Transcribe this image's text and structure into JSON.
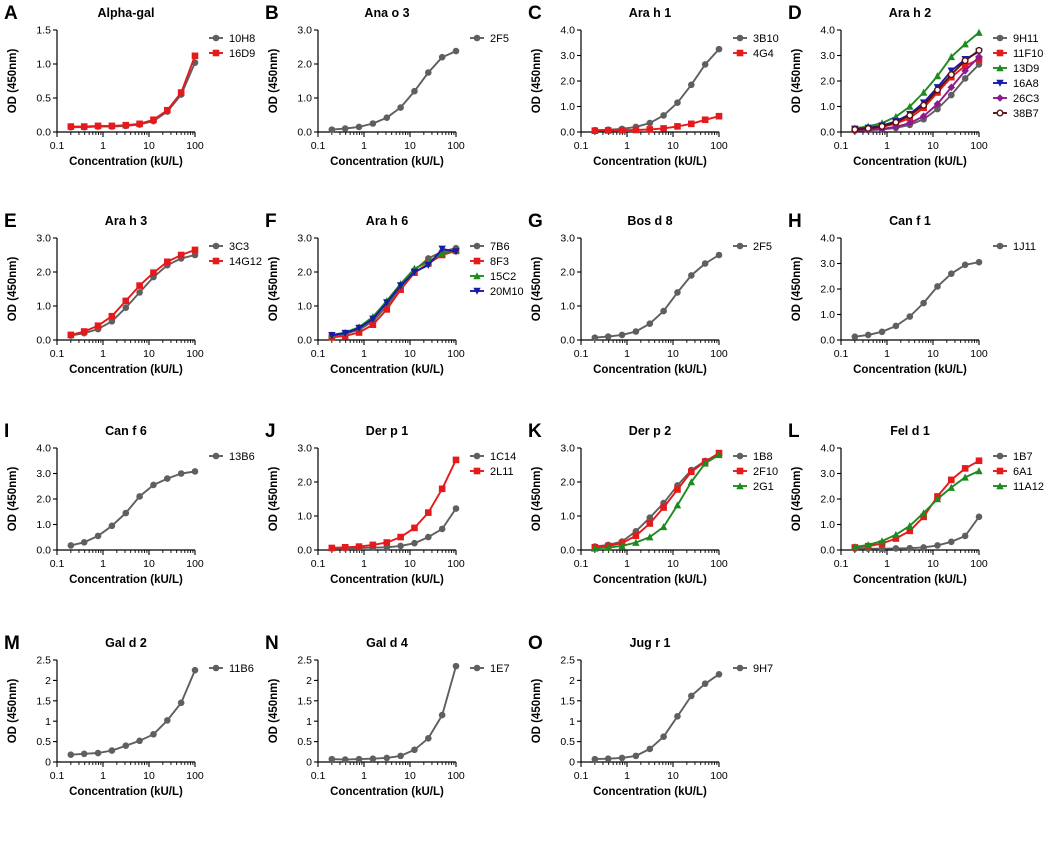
{
  "colors": {
    "gray": "#5f5f5f",
    "red": "#e41a1c",
    "green": "#1f8a1f",
    "blue": "#1a1aa8",
    "purple": "#8e1a8e",
    "maroon": "#5a1010"
  },
  "chart_data": [
    {
      "panel": "A",
      "type": "line",
      "title": "Alpha-gal",
      "xlabel": "Concentration (kU/L)",
      "ylabel": "OD (450nm)",
      "xscale": "log",
      "xlim": [
        0.1,
        100
      ],
      "xticks": [
        "0.1",
        "1",
        "10",
        "100"
      ],
      "ylim": [
        0,
        1.5
      ],
      "yticks": [
        "0.0",
        "0.5",
        "1.0",
        "1.5"
      ],
      "x": [
        0.2,
        0.39,
        0.78,
        1.56,
        3.13,
        6.25,
        12.5,
        25,
        50,
        100
      ],
      "series": [
        {
          "name": "10H8",
          "color": "gray",
          "marker": "circle",
          "values": [
            0.07,
            0.07,
            0.08,
            0.08,
            0.09,
            0.11,
            0.16,
            0.3,
            0.55,
            1.02
          ]
        },
        {
          "name": "16D9",
          "color": "red",
          "marker": "square",
          "values": [
            0.08,
            0.08,
            0.09,
            0.09,
            0.1,
            0.12,
            0.18,
            0.32,
            0.58,
            1.12
          ]
        }
      ]
    },
    {
      "panel": "B",
      "type": "line",
      "title": "Ana o 3",
      "xlabel": "Concentration (kU/L)",
      "ylabel": "OD (450nm)",
      "xscale": "log",
      "xlim": [
        0.1,
        100
      ],
      "xticks": [
        "0.1",
        "1",
        "10",
        "100"
      ],
      "ylim": [
        0,
        3.0
      ],
      "yticks": [
        "0.0",
        "1.0",
        "2.0",
        "3.0"
      ],
      "x": [
        0.2,
        0.39,
        0.78,
        1.56,
        3.13,
        6.25,
        12.5,
        25,
        50,
        100
      ],
      "series": [
        {
          "name": "2F5",
          "color": "gray",
          "marker": "circle",
          "values": [
            0.07,
            0.1,
            0.15,
            0.25,
            0.42,
            0.72,
            1.2,
            1.75,
            2.2,
            2.38
          ]
        }
      ]
    },
    {
      "panel": "C",
      "type": "line",
      "title": "Ara h 1",
      "xlabel": "Concentration (kU/L)",
      "ylabel": "OD (450nm)",
      "xscale": "log",
      "xlim": [
        0.1,
        100
      ],
      "xticks": [
        "0.1",
        "1",
        "10",
        "100"
      ],
      "ylim": [
        0,
        4.0
      ],
      "yticks": [
        "0.0",
        "1.0",
        "2.0",
        "3.0",
        "4.0"
      ],
      "x": [
        0.2,
        0.39,
        0.78,
        1.56,
        3.13,
        6.25,
        12.5,
        25,
        50,
        100
      ],
      "series": [
        {
          "name": "3B10",
          "color": "gray",
          "marker": "circle",
          "values": [
            0.07,
            0.09,
            0.12,
            0.2,
            0.35,
            0.65,
            1.15,
            1.85,
            2.65,
            3.25
          ]
        },
        {
          "name": "4G4",
          "color": "red",
          "marker": "square",
          "values": [
            0.05,
            0.06,
            0.07,
            0.08,
            0.1,
            0.14,
            0.22,
            0.32,
            0.48,
            0.62
          ]
        }
      ]
    },
    {
      "panel": "D",
      "type": "line",
      "title": "Ara h 2",
      "xlabel": "Concentration (kU/L)",
      "ylabel": "OD (450nm)",
      "xscale": "log",
      "xlim": [
        0.1,
        100
      ],
      "xticks": [
        "0.1",
        "1",
        "10",
        "100"
      ],
      "ylim": [
        0,
        4.0
      ],
      "yticks": [
        "0.0",
        "1.0",
        "2.0",
        "3.0",
        "4.0"
      ],
      "x": [
        0.2,
        0.39,
        0.78,
        1.56,
        3.13,
        6.25,
        12.5,
        25,
        50,
        100
      ],
      "series": [
        {
          "name": "9H11",
          "color": "gray",
          "marker": "circle",
          "values": [
            0.05,
            0.07,
            0.1,
            0.16,
            0.28,
            0.5,
            0.9,
            1.45,
            2.1,
            2.65
          ]
        },
        {
          "name": "11F10",
          "color": "red",
          "marker": "square",
          "values": [
            0.1,
            0.13,
            0.2,
            0.33,
            0.55,
            0.95,
            1.55,
            2.15,
            2.6,
            2.85
          ]
        },
        {
          "name": "13D9",
          "color": "green",
          "marker": "triangle",
          "values": [
            0.15,
            0.22,
            0.35,
            0.6,
            1.0,
            1.55,
            2.2,
            2.95,
            3.45,
            3.9
          ]
        },
        {
          "name": "16A8",
          "color": "blue",
          "marker": "triangle-down",
          "values": [
            0.12,
            0.16,
            0.25,
            0.42,
            0.7,
            1.15,
            1.75,
            2.4,
            2.85,
            3.15
          ]
        },
        {
          "name": "26C3",
          "color": "purple",
          "marker": "diamond",
          "values": [
            0.06,
            0.08,
            0.12,
            0.2,
            0.35,
            0.62,
            1.1,
            1.75,
            2.4,
            2.95
          ]
        },
        {
          "name": "38B7",
          "color": "maroon",
          "marker": "circle-open",
          "values": [
            0.1,
            0.14,
            0.22,
            0.38,
            0.65,
            1.05,
            1.65,
            2.25,
            2.8,
            3.2
          ]
        }
      ]
    },
    {
      "panel": "E",
      "type": "line",
      "title": "Ara h 3",
      "xlabel": "Concentration (kU/L)",
      "ylabel": "OD (450nm)",
      "xscale": "log",
      "xlim": [
        0.1,
        100
      ],
      "xticks": [
        "0.1",
        "1",
        "10",
        "100"
      ],
      "ylim": [
        0,
        3.0
      ],
      "yticks": [
        "0.0",
        "1.0",
        "2.0",
        "3.0"
      ],
      "x": [
        0.2,
        0.39,
        0.78,
        1.56,
        3.13,
        6.25,
        12.5,
        25,
        50,
        100
      ],
      "series": [
        {
          "name": "3C3",
          "color": "gray",
          "marker": "circle",
          "values": [
            0.13,
            0.2,
            0.32,
            0.55,
            0.95,
            1.4,
            1.85,
            2.2,
            2.4,
            2.5
          ]
        },
        {
          "name": "14G12",
          "color": "red",
          "marker": "square",
          "values": [
            0.15,
            0.25,
            0.42,
            0.7,
            1.15,
            1.6,
            1.98,
            2.3,
            2.5,
            2.65
          ]
        }
      ]
    },
    {
      "panel": "F",
      "type": "line",
      "title": "Ara h 6",
      "xlabel": "Concentration (kU/L)",
      "ylabel": "OD (450nm)",
      "xscale": "log",
      "xlim": [
        0.1,
        100
      ],
      "xticks": [
        "0.1",
        "1",
        "10",
        "100"
      ],
      "ylim": [
        0,
        3.0
      ],
      "yticks": [
        "0.0",
        "1.0",
        "2.0",
        "3.0"
      ],
      "x": [
        0.2,
        0.39,
        0.78,
        1.56,
        3.13,
        6.25,
        12.5,
        25,
        50,
        100
      ],
      "series": [
        {
          "name": "7B6",
          "color": "gray",
          "marker": "circle",
          "values": [
            0.12,
            0.18,
            0.3,
            0.55,
            1.0,
            1.55,
            2.05,
            2.4,
            2.6,
            2.7
          ]
        },
        {
          "name": "8F3",
          "color": "red",
          "marker": "square",
          "values": [
            0.08,
            0.12,
            0.22,
            0.45,
            0.9,
            1.48,
            1.98,
            2.25,
            2.5,
            2.62
          ]
        },
        {
          "name": "15C2",
          "color": "green",
          "marker": "triangle",
          "values": [
            0.15,
            0.22,
            0.38,
            0.68,
            1.15,
            1.65,
            2.1,
            2.3,
            2.55,
            2.65
          ]
        },
        {
          "name": "20M10",
          "color": "blue",
          "marker": "triangle-down",
          "values": [
            0.14,
            0.2,
            0.35,
            0.62,
            1.1,
            1.6,
            2.0,
            2.2,
            2.68,
            2.6
          ]
        }
      ]
    },
    {
      "panel": "G",
      "type": "line",
      "title": "Bos d 8",
      "xlabel": "Concentration (kU/L)",
      "ylabel": "OD (450nm)",
      "xscale": "log",
      "xlim": [
        0.1,
        100
      ],
      "xticks": [
        "0.1",
        "1",
        "10",
        "100"
      ],
      "ylim": [
        0,
        3.0
      ],
      "yticks": [
        "0.0",
        "1.0",
        "2.0",
        "3.0"
      ],
      "x": [
        0.2,
        0.39,
        0.78,
        1.56,
        3.13,
        6.25,
        12.5,
        25,
        50,
        100
      ],
      "series": [
        {
          "name": "2F5",
          "color": "gray",
          "marker": "circle",
          "values": [
            0.07,
            0.1,
            0.15,
            0.25,
            0.48,
            0.85,
            1.4,
            1.9,
            2.25,
            2.5
          ]
        }
      ]
    },
    {
      "panel": "H",
      "type": "line",
      "title": "Can f 1",
      "xlabel": "Concentration (kU/L)",
      "ylabel": "OD (450nm)",
      "xscale": "log",
      "xlim": [
        0.1,
        100
      ],
      "xticks": [
        "0.1",
        "1",
        "10",
        "100"
      ],
      "ylim": [
        0,
        4.0
      ],
      "yticks": [
        "0.0",
        "1.0",
        "2.0",
        "3.0",
        "4.0"
      ],
      "x": [
        0.2,
        0.39,
        0.78,
        1.56,
        3.13,
        6.25,
        12.5,
        25,
        50,
        100
      ],
      "series": [
        {
          "name": "1J11",
          "color": "gray",
          "marker": "circle",
          "values": [
            0.13,
            0.2,
            0.32,
            0.55,
            0.92,
            1.45,
            2.1,
            2.6,
            2.95,
            3.05
          ]
        }
      ]
    },
    {
      "panel": "I",
      "type": "line",
      "title": "Can f 6",
      "xlabel": "Concentration (kU/L)",
      "ylabel": "OD (450nm)",
      "xscale": "log",
      "xlim": [
        0.1,
        100
      ],
      "xticks": [
        "0.1",
        "1",
        "10",
        "100"
      ],
      "ylim": [
        0,
        4.0
      ],
      "yticks": [
        "0.0",
        "1.0",
        "2.0",
        "3.0",
        "4.0"
      ],
      "x": [
        0.2,
        0.39,
        0.78,
        1.56,
        3.13,
        6.25,
        12.5,
        25,
        50,
        100
      ],
      "series": [
        {
          "name": "13B6",
          "color": "gray",
          "marker": "circle",
          "values": [
            0.18,
            0.3,
            0.55,
            0.95,
            1.45,
            2.1,
            2.55,
            2.8,
            3.0,
            3.08
          ]
        }
      ]
    },
    {
      "panel": "J",
      "type": "line",
      "title": "Der p 1",
      "xlabel": "Concentration (kU/L)",
      "ylabel": "OD (450nm)",
      "xscale": "log",
      "xlim": [
        0.1,
        100
      ],
      "xticks": [
        "0.1",
        "1",
        "10",
        "100"
      ],
      "ylim": [
        0,
        3.0
      ],
      "yticks": [
        "0.0",
        "1.0",
        "2.0",
        "3.0"
      ],
      "x": [
        0.2,
        0.39,
        0.78,
        1.56,
        3.13,
        6.25,
        12.5,
        25,
        50,
        100
      ],
      "series": [
        {
          "name": "1C14",
          "color": "gray",
          "marker": "circle",
          "values": [
            0.05,
            0.05,
            0.06,
            0.07,
            0.08,
            0.12,
            0.2,
            0.38,
            0.62,
            1.22
          ]
        },
        {
          "name": "2L11",
          "color": "red",
          "marker": "square",
          "values": [
            0.06,
            0.08,
            0.1,
            0.15,
            0.22,
            0.38,
            0.65,
            1.1,
            1.8,
            2.65
          ]
        }
      ]
    },
    {
      "panel": "K",
      "type": "line",
      "title": "Der p 2",
      "xlabel": "Concentration (kU/L)",
      "ylabel": "OD (450nm)",
      "xscale": "log",
      "xlim": [
        0.1,
        100
      ],
      "xticks": [
        "0.1",
        "1",
        "10",
        "100"
      ],
      "ylim": [
        0,
        3.0
      ],
      "yticks": [
        "0.0",
        "1.0",
        "2.0",
        "3.0"
      ],
      "x": [
        0.2,
        0.39,
        0.78,
        1.56,
        3.13,
        6.25,
        12.5,
        25,
        50,
        100
      ],
      "series": [
        {
          "name": "1B8",
          "color": "gray",
          "marker": "circle",
          "values": [
            0.1,
            0.15,
            0.25,
            0.55,
            0.95,
            1.38,
            1.9,
            2.35,
            2.62,
            2.8
          ]
        },
        {
          "name": "2F10",
          "color": "red",
          "marker": "square",
          "values": [
            0.08,
            0.12,
            0.2,
            0.42,
            0.78,
            1.25,
            1.78,
            2.3,
            2.6,
            2.85
          ]
        },
        {
          "name": "2G1",
          "color": "green",
          "marker": "triangle",
          "values": [
            0.05,
            0.07,
            0.12,
            0.22,
            0.38,
            0.68,
            1.32,
            2.0,
            2.55,
            2.8
          ]
        }
      ]
    },
    {
      "panel": "L",
      "type": "line",
      "title": "Fel d 1",
      "xlabel": "Concentration (kU/L)",
      "ylabel": "OD (450nm)",
      "xscale": "log",
      "xlim": [
        0.1,
        100
      ],
      "xticks": [
        "0.1",
        "1",
        "10",
        "100"
      ],
      "ylim": [
        0,
        4.0
      ],
      "yticks": [
        "0.0",
        "1.0",
        "2.0",
        "3.0",
        "4.0"
      ],
      "x": [
        0.2,
        0.39,
        0.78,
        1.56,
        3.13,
        6.25,
        12.5,
        25,
        50,
        100
      ],
      "series": [
        {
          "name": "1B7",
          "color": "gray",
          "marker": "circle",
          "values": [
            0.05,
            0.05,
            0.05,
            0.06,
            0.07,
            0.1,
            0.18,
            0.32,
            0.55,
            1.3
          ]
        },
        {
          "name": "6A1",
          "color": "red",
          "marker": "square",
          "values": [
            0.1,
            0.15,
            0.25,
            0.45,
            0.75,
            1.3,
            2.1,
            2.75,
            3.2,
            3.5
          ]
        },
        {
          "name": "11A12",
          "color": "green",
          "marker": "triangle",
          "values": [
            0.12,
            0.2,
            0.35,
            0.6,
            0.95,
            1.45,
            2.0,
            2.45,
            2.85,
            3.1
          ]
        }
      ]
    },
    {
      "panel": "M",
      "type": "line",
      "title": "Gal d 2",
      "xlabel": "Concentration (kU/L)",
      "ylabel": "OD (450nm)",
      "xscale": "log",
      "xlim": [
        0.1,
        100
      ],
      "xticks": [
        "0.1",
        "1",
        "10",
        "100"
      ],
      "ylim": [
        0,
        2.5
      ],
      "yticks": [
        "0",
        "0.5",
        "1",
        "1.5",
        "2",
        "2.5"
      ],
      "x": [
        0.2,
        0.39,
        0.78,
        1.56,
        3.13,
        6.25,
        12.5,
        25,
        50,
        100
      ],
      "series": [
        {
          "name": "11B6",
          "color": "gray",
          "marker": "circle",
          "values": [
            0.18,
            0.2,
            0.22,
            0.28,
            0.4,
            0.52,
            0.68,
            1.02,
            1.45,
            2.25
          ]
        }
      ]
    },
    {
      "panel": "N",
      "type": "line",
      "title": "Gal d 4",
      "xlabel": "Concentration (kU/L)",
      "ylabel": "OD (450nm)",
      "xscale": "log",
      "xlim": [
        0.1,
        100
      ],
      "xticks": [
        "0.1",
        "1",
        "10",
        "100"
      ],
      "ylim": [
        0,
        2.5
      ],
      "yticks": [
        "0",
        "0.5",
        "1",
        "1.5",
        "2",
        "2.5"
      ],
      "x": [
        0.2,
        0.39,
        0.78,
        1.56,
        3.13,
        6.25,
        12.5,
        25,
        50,
        100
      ],
      "series": [
        {
          "name": "1E7",
          "color": "gray",
          "marker": "circle",
          "values": [
            0.07,
            0.06,
            0.07,
            0.08,
            0.1,
            0.15,
            0.3,
            0.58,
            1.15,
            2.35
          ]
        }
      ]
    },
    {
      "panel": "O",
      "type": "line",
      "title": "Jug r 1",
      "xlabel": "Concentration (kU/L)",
      "ylabel": "OD (450nm)",
      "xscale": "log",
      "xlim": [
        0.1,
        100
      ],
      "xticks": [
        "0.1",
        "1",
        "10",
        "100"
      ],
      "ylim": [
        0,
        2.5
      ],
      "yticks": [
        "0",
        "0.5",
        "1",
        "1.5",
        "2",
        "2.5"
      ],
      "x": [
        0.2,
        0.39,
        0.78,
        1.56,
        3.13,
        6.25,
        12.5,
        25,
        50,
        100
      ],
      "series": [
        {
          "name": "9H7",
          "color": "gray",
          "marker": "circle",
          "values": [
            0.07,
            0.08,
            0.1,
            0.15,
            0.32,
            0.62,
            1.12,
            1.62,
            1.92,
            2.15
          ]
        }
      ]
    }
  ]
}
